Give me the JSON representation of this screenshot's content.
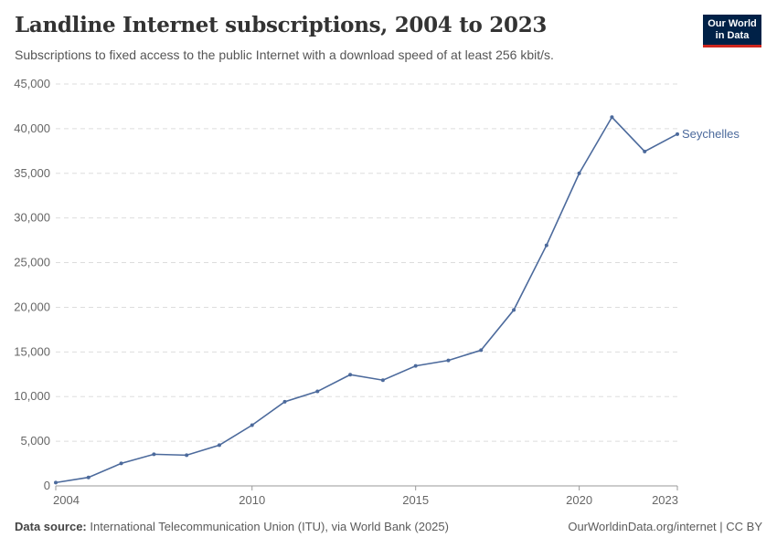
{
  "header": {
    "title": "Landline Internet subscriptions, 2004 to 2023",
    "subtitle": "Subscriptions to fixed access to the public Internet with a download speed of at least 256 kbit/s.",
    "logo": "Our World in Data"
  },
  "footer": {
    "source_label": "Data source:",
    "source": "International Telecommunication Union (ITU), via World Bank (2025)",
    "link": "OurWorldinData.org/internet | CC BY"
  },
  "chart_data": {
    "type": "line",
    "title": "Landline Internet subscriptions, 2004 to 2023",
    "x": [
      2004,
      2005,
      2006,
      2007,
      2008,
      2009,
      2010,
      2011,
      2012,
      2013,
      2014,
      2015,
      2016,
      2017,
      2018,
      2019,
      2020,
      2021,
      2022,
      2023
    ],
    "series": [
      {
        "name": "Seychelles",
        "color": "#4c6a9c",
        "values": [
          370,
          950,
          2520,
          3540,
          3440,
          4560,
          6800,
          9420,
          10580,
          12450,
          11840,
          13440,
          14050,
          15200,
          19700,
          26940,
          35000,
          41290,
          37450,
          39390
        ]
      }
    ],
    "xticks": [
      "2004",
      "2010",
      "2015",
      "2020",
      "2023"
    ],
    "yticks": [
      "0",
      "5,000",
      "10,000",
      "15,000",
      "20,000",
      "25,000",
      "30,000",
      "35,000",
      "40,000",
      "45,000"
    ],
    "ylim": [
      0,
      45000
    ],
    "xlim": [
      2004,
      2023
    ],
    "grid": "horizontal dashed",
    "legend": "inline-right"
  }
}
